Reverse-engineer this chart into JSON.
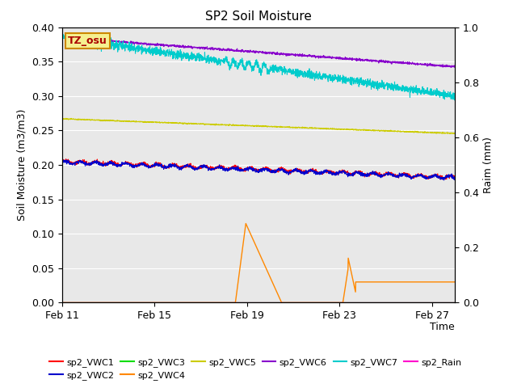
{
  "title": "SP2 Soil Moisture",
  "xlabel": "Time",
  "ylabel_left": "Soil Moisture (m3/m3)",
  "ylabel_right": "Raim (mm)",
  "xlim_days": [
    0,
    17
  ],
  "ylim_left": [
    0.0,
    0.4
  ],
  "ylim_right": [
    0.0,
    1.0
  ],
  "x_ticks_labels": [
    "Feb 11",
    "Feb 15",
    "Feb 19",
    "Feb 23",
    "Feb 27"
  ],
  "x_ticks_positions": [
    0,
    4,
    8,
    12,
    16
  ],
  "background_color": "#e8e8e8",
  "tag_text": "TZ_osu",
  "tag_bg": "#f5f090",
  "tag_border": "#cc8800",
  "series": {
    "sp2_VWC1": {
      "color": "#ff0000",
      "lw": 0.8
    },
    "sp2_VWC2": {
      "color": "#0000cc",
      "lw": 0.8
    },
    "sp2_VWC3": {
      "color": "#00dd00",
      "lw": 0.8
    },
    "sp2_VWC4": {
      "color": "#ff8800",
      "lw": 1.0
    },
    "sp2_VWC5": {
      "color": "#cccc00",
      "lw": 0.8
    },
    "sp2_VWC6": {
      "color": "#8800cc",
      "lw": 0.8
    },
    "sp2_VWC7": {
      "color": "#00cccc",
      "lw": 0.8
    },
    "sp2_Rain": {
      "color": "#ff00cc",
      "lw": 0.8
    }
  }
}
